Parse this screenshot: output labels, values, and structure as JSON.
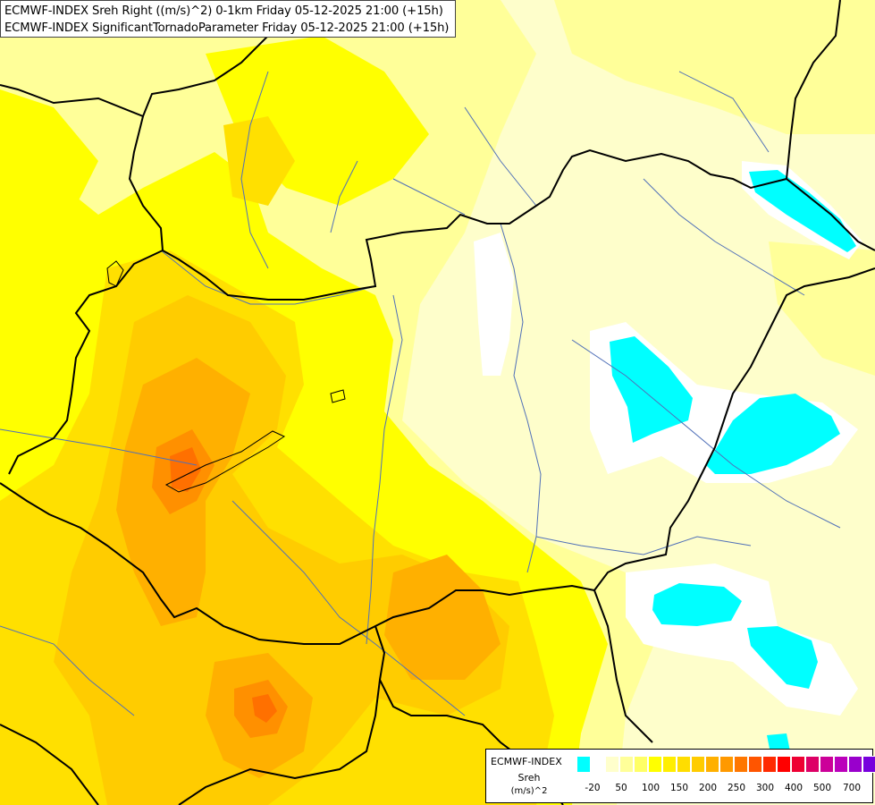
{
  "title": {
    "line1": "ECMWF-INDEX Sreh Right ((m/s)^2) 0-1km Friday 05-12-2025 21:00 (+15h)",
    "line2": "ECMWF-INDEX SignificantTornadoParameter Friday 05-12-2025 21:00 (+15h)"
  },
  "legend": {
    "model": "ECMWF-INDEX",
    "variable": "Sreh",
    "unit": "(m/s)^2",
    "colors": [
      "#00ffff",
      "#ffffff",
      "#ffffcc",
      "#ffff99",
      "#ffff66",
      "#ffff00",
      "#ffee00",
      "#ffdd00",
      "#ffcc00",
      "#ffb000",
      "#ff9900",
      "#ff7700",
      "#ff5500",
      "#ff2a00",
      "#ff0000",
      "#ee0033",
      "#dd0066",
      "#cc0099",
      "#bb00bb",
      "#9900cc",
      "#7700dd",
      "#5500cc",
      "#3300aa",
      "#1a0080"
    ],
    "tick_labels": [
      "-20",
      "50",
      "100",
      "150",
      "200",
      "250",
      "300",
      "400",
      "500",
      "700"
    ]
  },
  "map_colors": {
    "pale": "#fefecb",
    "light": "#ffff99",
    "yellow": "#ffff00",
    "gold": "#ffe000",
    "amber": "#ffcc00",
    "orange": "#ffb000",
    "deep_orange": "#ff9000",
    "red_orange": "#ff7000",
    "cyan": "#00ffff",
    "white": "#ffffff",
    "border": "#000000",
    "river": "#5070b8"
  }
}
